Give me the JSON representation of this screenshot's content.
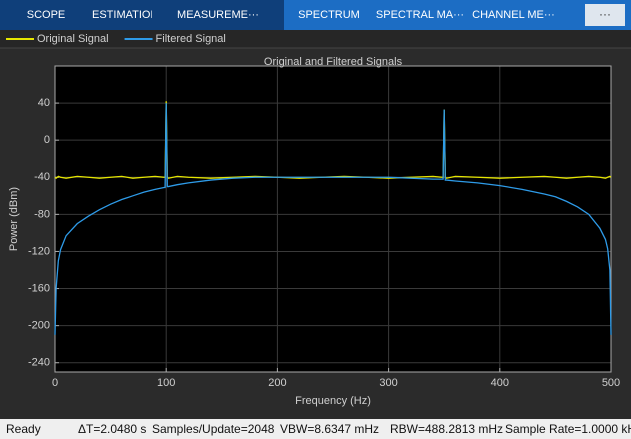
{
  "toolstrip": {
    "tabs": [
      "SCOPE",
      "ESTIMATION",
      "MEASUREME···",
      "SPECTRUM",
      "SPECTRAL MA···",
      "CHANNEL ME···"
    ],
    "more_button": "···"
  },
  "chart_data": {
    "type": "line",
    "title": "Original and Filtered Signals",
    "x_label": "Frequency (Hz)",
    "y_label": "Power (dBm)",
    "x": [
      0,
      1,
      3,
      5,
      10,
      20,
      30,
      40,
      50,
      60,
      70,
      80,
      90,
      98,
      99,
      100,
      101,
      102,
      110,
      120,
      140,
      160,
      180,
      200,
      220,
      240,
      260,
      280,
      300,
      320,
      340,
      348,
      349,
      350,
      351,
      352,
      360,
      380,
      400,
      420,
      440,
      450,
      460,
      470,
      480,
      490,
      495,
      497,
      499,
      500
    ],
    "series": [
      {
        "name": "Original Signal",
        "color": "#e6e600",
        "values": [
          -40,
          -41,
          -39,
          -40,
          -41,
          -39,
          -40,
          -41,
          -40,
          -39,
          -41,
          -40,
          -39,
          -40,
          -40,
          42,
          -40,
          -41,
          -39,
          -40,
          -41,
          -40,
          -39,
          -40,
          -41,
          -40,
          -39,
          -40,
          -41,
          -40,
          -39,
          -40,
          -40,
          33,
          -40,
          -41,
          -39,
          -40,
          -41,
          -40,
          -39,
          -40,
          -41,
          -40,
          -39,
          -40,
          -41,
          -40,
          -39,
          -40
        ]
      },
      {
        "name": "Filtered Signal",
        "color": "#2e9be8",
        "values": [
          -210,
          -160,
          -130,
          -118,
          -103,
          -90,
          -82,
          -75,
          -69,
          -64,
          -60,
          -56,
          -53,
          -51,
          -51,
          40,
          -50,
          -50,
          -48,
          -46,
          -43,
          -41,
          -40,
          -40,
          -40,
          -40,
          -40,
          -40,
          -40,
          -41,
          -42,
          -42,
          -42,
          33,
          -43,
          -43,
          -44,
          -46,
          -49,
          -53,
          -58,
          -61,
          -66,
          -72,
          -80,
          -95,
          -107,
          -117,
          -140,
          -210
        ]
      }
    ],
    "xlim": [
      0,
      500
    ],
    "xticks": [
      0,
      100,
      200,
      300,
      400,
      500
    ],
    "ylim": [
      -250,
      80
    ],
    "yticks": [
      40,
      0,
      -40,
      -80,
      -120,
      -160,
      -200,
      -240
    ],
    "grid": true,
    "legend": "top"
  },
  "status_bar": {
    "state": "Ready",
    "delta_t": "ΔT=2.0480 s",
    "samples": "Samples/Update=2048",
    "vbw": "VBW=8.6347 mHz",
    "rbw": "RBW=488.2813 mHz",
    "sample_rate": "Sample Rate=1.0000 kH"
  }
}
